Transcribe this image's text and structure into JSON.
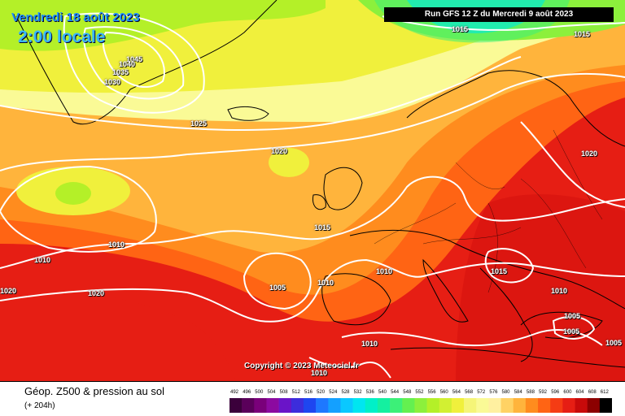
{
  "header": {
    "date": "Vendredi 18 août 2023",
    "local_time": "2:00 locale",
    "run": "Run GFS 12 Z du Mercredi 9 août 2023"
  },
  "copyright": "Copyright © 2023 Meteociel.fr",
  "footer": {
    "parameter": "Géop. Z500 & pression au sol",
    "forecast_step": "(+ 204h)"
  },
  "isobar_labels": [
    "1045",
    "1040",
    "1035",
    "1030",
    "1025",
    "1020",
    "1015",
    "1015",
    "1015",
    "1020",
    "1010",
    "1010",
    "1020",
    "1020",
    "1005",
    "1010",
    "1010",
    "1015",
    "1010",
    "1005",
    "1005",
    "1010",
    "1010",
    "1005",
    "1015"
  ],
  "legend": {
    "values": [
      "492",
      "496",
      "500",
      "504",
      "508",
      "512",
      "516",
      "520",
      "524",
      "528",
      "532",
      "536",
      "540",
      "544",
      "548",
      "552",
      "556",
      "560",
      "564",
      "568",
      "572",
      "576",
      "580",
      "584",
      "588",
      "592",
      "596",
      "600",
      "604",
      "608",
      "612"
    ],
    "colors": [
      "#3b003b",
      "#5a005a",
      "#7a007a",
      "#8c0aa0",
      "#6a14c8",
      "#3c2ddc",
      "#1e46f0",
      "#1e78ff",
      "#14a0ff",
      "#0ac8ff",
      "#00e6f0",
      "#00f0c8",
      "#14f0a0",
      "#3cf078",
      "#64f050",
      "#8cf03c",
      "#b4f028",
      "#d2f032",
      "#f0f03c",
      "#f5f578",
      "#fafa96",
      "#fff0a0",
      "#ffd264",
      "#ffb43c",
      "#ff8c1e",
      "#ff6414",
      "#f53c14",
      "#e61e14",
      "#c80a0a",
      "#8c0000",
      "#000000"
    ]
  },
  "map_colors": {
    "green_light": "#b4f028",
    "yellow": "#f0f03c",
    "pale_yellow": "#fafa96",
    "orange": "#ffb43c",
    "orange_red": "#ff6414",
    "red": "#e61e14",
    "cyan": "#00e6f0",
    "isobar": "#ffffff",
    "coastline": "#000000"
  }
}
